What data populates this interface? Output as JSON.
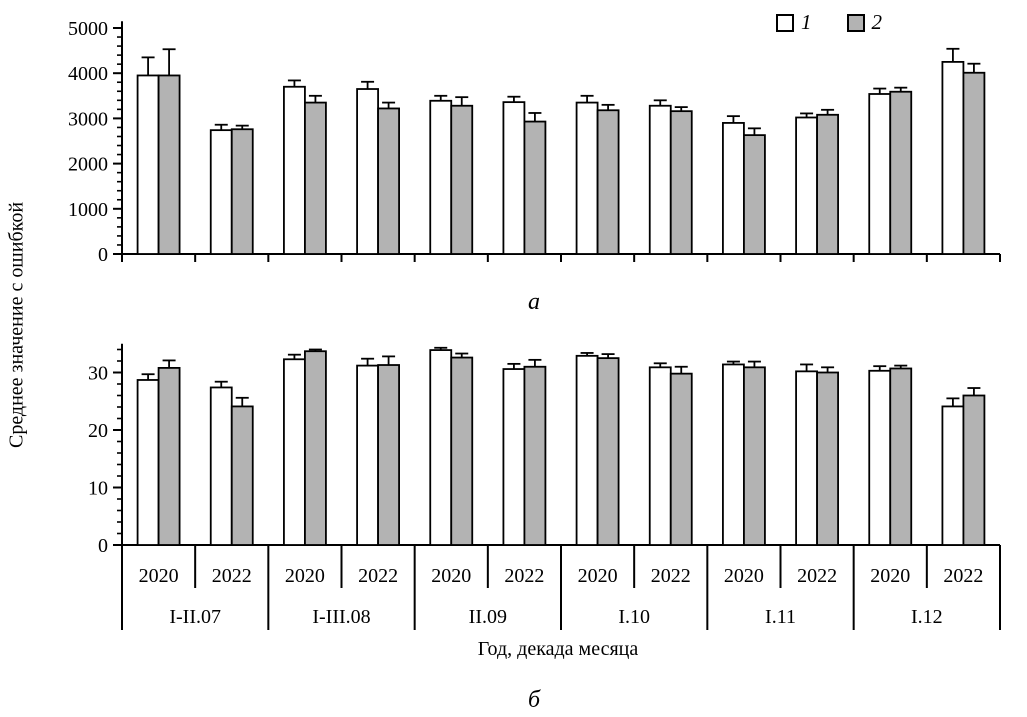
{
  "figure": {
    "ylabel": "Среднее значение с ошибкой",
    "xlabel": "Год, декада месяца",
    "legend": {
      "position": "top-right",
      "items": [
        {
          "label": "1",
          "color": "#ffffff"
        },
        {
          "label": "2",
          "color": "#b3b3b3"
        }
      ]
    }
  },
  "x_axis": {
    "groups": [
      {
        "period": "I-II.07",
        "years": [
          "2020",
          "2022"
        ]
      },
      {
        "period": "I-III.08",
        "years": [
          "2020",
          "2022"
        ]
      },
      {
        "period": "II.09",
        "years": [
          "2020",
          "2022"
        ]
      },
      {
        "period": "I.10",
        "years": [
          "2020",
          "2022"
        ]
      },
      {
        "period": "I.11",
        "years": [
          "2020",
          "2022"
        ]
      },
      {
        "period": "I.12",
        "years": [
          "2020",
          "2022"
        ]
      }
    ]
  },
  "chart_data": [
    {
      "id": "a",
      "type": "bar",
      "panel_label": "а",
      "title": "",
      "xlabel": "",
      "ylabel": "Среднее значение с ошибкой",
      "ylim": [
        0,
        5150
      ],
      "yticks": [
        0,
        1000,
        2000,
        3000,
        4000,
        5000
      ],
      "ytick_minor_step": 200,
      "grid": false,
      "legend_position": "top-right",
      "categories": [
        "I-II.07 2020",
        "I-II.07 2022",
        "I-III.08 2020",
        "I-III.08 2022",
        "II.09 2020",
        "II.09 2022",
        "I.10 2020",
        "I.10 2022",
        "I.11 2020",
        "I.11 2022",
        "I.12 2020",
        "I.12 2022"
      ],
      "series": [
        {
          "name": "1",
          "fill": "#ffffff",
          "values": [
            3950,
            2740,
            3700,
            3650,
            3390,
            3360,
            3350,
            3280,
            2900,
            3020,
            3540,
            4250
          ],
          "errors": [
            400,
            120,
            140,
            160,
            110,
            120,
            150,
            120,
            150,
            90,
            120,
            290
          ]
        },
        {
          "name": "2",
          "fill": "#b3b3b3",
          "values": [
            3950,
            2760,
            3350,
            3220,
            3280,
            2930,
            3180,
            3160,
            2630,
            3080,
            3590,
            4010
          ],
          "errors": [
            580,
            80,
            150,
            130,
            190,
            190,
            120,
            90,
            150,
            110,
            90,
            200
          ]
        }
      ]
    },
    {
      "id": "b",
      "type": "bar",
      "panel_label": "б",
      "title": "",
      "xlabel": "Год, декада месяца",
      "ylabel": "Среднее значение с ошибкой",
      "ylim": [
        0,
        35
      ],
      "yticks": [
        0,
        10,
        20,
        30
      ],
      "ytick_minor_step": 2,
      "grid": false,
      "legend_position": "none",
      "categories": [
        "I-II.07 2020",
        "I-II.07 2022",
        "I-III.08 2020",
        "I-III.08 2022",
        "II.09 2020",
        "II.09 2022",
        "I.10 2020",
        "I.10 2022",
        "I.11 2020",
        "I.11 2022",
        "I.12 2020",
        "I.12 2022"
      ],
      "series": [
        {
          "name": "1",
          "fill": "#ffffff",
          "values": [
            28.7,
            27.4,
            32.3,
            31.2,
            33.9,
            30.6,
            32.9,
            30.9,
            31.4,
            30.2,
            30.3,
            24.1
          ],
          "errors": [
            1.0,
            1.0,
            0.8,
            1.2,
            0.4,
            0.9,
            0.5,
            0.7,
            0.5,
            1.2,
            0.8,
            1.4
          ]
        },
        {
          "name": "2",
          "fill": "#b3b3b3",
          "values": [
            30.8,
            24.1,
            33.7,
            31.3,
            32.6,
            31.0,
            32.5,
            29.8,
            30.9,
            30.0,
            30.7,
            26.0
          ],
          "errors": [
            1.3,
            1.5,
            0.3,
            1.5,
            0.7,
            1.2,
            0.7,
            1.2,
            1.0,
            0.9,
            0.5,
            1.3
          ]
        }
      ]
    }
  ]
}
